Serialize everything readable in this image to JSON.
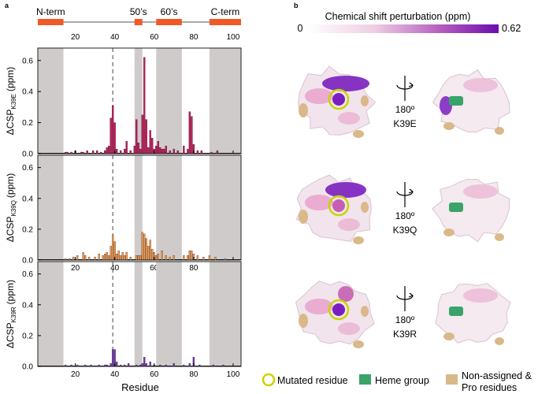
{
  "panel_a": {
    "label": "a",
    "regions": [
      {
        "name": "N-term",
        "start": 1,
        "end": 14
      },
      {
        "name": "50’s",
        "start": 50,
        "end": 54
      },
      {
        "name": "60’s",
        "start": 61,
        "end": 74
      },
      {
        "name": "C-term",
        "start": 88,
        "end": 104
      }
    ],
    "top_ticks": [
      "20",
      "40",
      "60",
      "80",
      "100"
    ],
    "xlabel": "Residue",
    "mutation_position": 39
  },
  "panel_b": {
    "label": "b",
    "colorbar_title": "Chemical shift perturbation (ppm)",
    "colorbar_min": "0",
    "colorbar_max": "0.62",
    "colorbar_colors": [
      "#ffffff",
      "#6a0dad"
    ],
    "rotation_label": "180º",
    "structures": [
      {
        "mutant": "K39E"
      },
      {
        "mutant": "K39Q"
      },
      {
        "mutant": "K39R"
      }
    ],
    "legend": {
      "mutated": "Mutated residue",
      "heme": "Heme group",
      "nonassigned_line1": "Non-assigned &",
      "nonassigned_line2": "Pro residues"
    },
    "colors": {
      "mutated_ring": "#c8d400",
      "heme": "#3aa36a",
      "nonassigned": "#d9b98a",
      "low": "#f3e4ee",
      "pink": "#e79ac7",
      "magenta": "#c45fb3",
      "purple": "#7a1fbf"
    }
  },
  "chart_data": [
    {
      "type": "bar",
      "title": "K39E",
      "ylabel_main": "ΔCSP",
      "ylabel_sub": "K39E",
      "ylabel_unit": "(ppm)",
      "xlabel": "Residue",
      "xlim": [
        1,
        104
      ],
      "ylim": [
        0,
        0.68
      ],
      "xticks": [
        "20",
        "40",
        "60",
        "80",
        "100"
      ],
      "yticks": [
        "0.0",
        "0.2",
        "0.4",
        "0.6"
      ],
      "color": "#c2185b",
      "shaded_regions": [
        [
          1,
          14
        ],
        [
          50,
          54
        ],
        [
          61,
          74
        ],
        [
          88,
          104
        ]
      ],
      "dashed_line_x": 39,
      "x": [
        15,
        16,
        18,
        20,
        23,
        24,
        26,
        29,
        31,
        33,
        35,
        36,
        37,
        38,
        39,
        40,
        41,
        43,
        45,
        46,
        48,
        50,
        51,
        52,
        53,
        54,
        55,
        56,
        57,
        58,
        59,
        60,
        61,
        62,
        63,
        64,
        65,
        66,
        68,
        70,
        72,
        75,
        77,
        78,
        79,
        80,
        82,
        84,
        89,
        92
      ],
      "values": [
        0.01,
        0.01,
        0.01,
        0.02,
        0.01,
        0.01,
        0.02,
        0.02,
        0.02,
        0.01,
        0.02,
        0.04,
        0.05,
        0.23,
        0.31,
        0.2,
        0.03,
        0.02,
        0.03,
        0.08,
        0.02,
        0.05,
        0.22,
        0.07,
        0.03,
        0.25,
        0.62,
        0.22,
        0.04,
        0.15,
        0.1,
        0.03,
        0.05,
        0.08,
        0.04,
        0.03,
        0.03,
        0.05,
        0.02,
        0.03,
        0.02,
        0.05,
        0.03,
        0.27,
        0.24,
        0.06,
        0.02,
        0.02,
        0.01,
        0.02
      ]
    },
    {
      "type": "bar",
      "title": "K39Q",
      "ylabel_main": "ΔCSP",
      "ylabel_sub": "K39Q",
      "ylabel_unit": "(ppm)",
      "xlabel": "Residue",
      "xlim": [
        1,
        104
      ],
      "ylim": [
        0,
        0.68
      ],
      "xticks": [
        "20",
        "40",
        "60",
        "80",
        "100"
      ],
      "yticks": [
        "0.0",
        "0.2",
        "0.4",
        "0.6"
      ],
      "color": "#f0a04b",
      "shaded_regions": [
        [
          1,
          14
        ],
        [
          50,
          54
        ],
        [
          61,
          74
        ],
        [
          88,
          104
        ]
      ],
      "dashed_line_x": 39,
      "x": [
        15,
        17,
        19,
        21,
        24,
        25,
        27,
        30,
        32,
        34,
        35,
        36,
        37,
        38,
        39,
        40,
        41,
        42,
        43,
        44,
        45,
        46,
        48,
        51,
        52,
        53,
        54,
        55,
        56,
        57,
        58,
        59,
        60,
        61,
        62,
        64,
        66,
        68,
        70,
        75,
        77,
        78,
        79,
        80,
        82,
        85,
        88,
        91,
        96
      ],
      "values": [
        0.01,
        0.01,
        0.02,
        0.03,
        0.05,
        0.03,
        0.02,
        0.02,
        0.04,
        0.03,
        0.04,
        0.05,
        0.03,
        0.09,
        0.16,
        0.12,
        0.04,
        0.06,
        0.03,
        0.05,
        0.03,
        0.05,
        0.02,
        0.03,
        0.03,
        0.03,
        0.18,
        0.17,
        0.14,
        0.09,
        0.13,
        0.07,
        0.05,
        0.03,
        0.04,
        0.06,
        0.03,
        0.02,
        0.03,
        0.03,
        0.03,
        0.06,
        0.06,
        0.04,
        0.03,
        0.02,
        0.03,
        0.02,
        0.01
      ]
    },
    {
      "type": "bar",
      "title": "K39R",
      "ylabel_main": "ΔCSP",
      "ylabel_sub": "K39R",
      "ylabel_unit": "(ppm)",
      "xlabel": "Residue",
      "xlim": [
        1,
        104
      ],
      "ylim": [
        0,
        0.68
      ],
      "xticks": [
        "20",
        "40",
        "60",
        "80",
        "100"
      ],
      "yticks": [
        "0.0",
        "0.2",
        "0.4",
        "0.6"
      ],
      "color": "#6a3fb5",
      "shaded_regions": [
        [
          1,
          14
        ],
        [
          50,
          54
        ],
        [
          61,
          74
        ],
        [
          88,
          104
        ]
      ],
      "dashed_line_x": 39,
      "x": [
        15,
        18,
        21,
        25,
        28,
        32,
        35,
        36,
        38,
        39,
        40,
        41,
        43,
        45,
        47,
        51,
        53,
        54,
        55,
        56,
        58,
        60,
        63,
        66,
        70,
        75,
        78,
        80,
        83,
        90,
        95
      ],
      "values": [
        0.01,
        0.01,
        0.01,
        0.01,
        0.01,
        0.01,
        0.01,
        0.01,
        0.02,
        0.11,
        0.11,
        0.03,
        0.01,
        0.01,
        0.02,
        0.01,
        0.01,
        0.02,
        0.06,
        0.02,
        0.03,
        0.01,
        0.01,
        0.01,
        0.02,
        0.01,
        0.02,
        0.06,
        0.01,
        0.01,
        0.01
      ]
    }
  ]
}
